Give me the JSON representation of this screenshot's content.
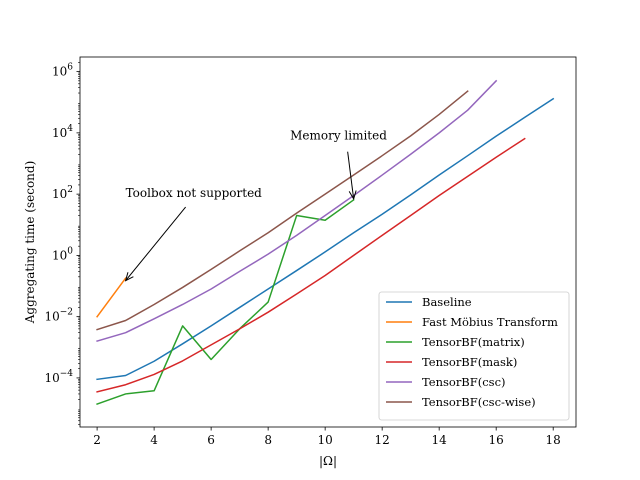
{
  "chart_data": {
    "type": "line",
    "xlabel": "|Ω|",
    "ylabel": "Aggregating time (second)",
    "xscale": "linear",
    "yscale": "log",
    "xlim": [
      1.4,
      18.8
    ],
    "ylim": [
      2.5e-06,
      3000000.0
    ],
    "xticks": [
      2,
      4,
      6,
      8,
      10,
      12,
      14,
      16,
      18
    ],
    "xtick_labels": [
      "2",
      "4",
      "6",
      "8",
      "10",
      "12",
      "14",
      "16",
      "18"
    ],
    "yticks": [
      0.0001,
      0.01,
      1,
      100,
      10000,
      1000000
    ],
    "ytick_labels": [
      {
        "base": "10",
        "exp": "−4"
      },
      {
        "base": "10",
        "exp": "−2"
      },
      {
        "base": "10",
        "exp": "0"
      },
      {
        "base": "10",
        "exp": "2"
      },
      {
        "base": "10",
        "exp": "4"
      },
      {
        "base": "10",
        "exp": "6"
      }
    ],
    "grid": false,
    "legend_position": "lower-right",
    "series": [
      {
        "name": "Baseline",
        "color": "#1f77b4",
        "x": [
          2,
          3,
          4,
          5,
          6,
          7,
          8,
          9,
          10,
          11,
          12,
          13,
          14,
          15,
          16,
          17,
          18
        ],
        "y": [
          9e-05,
          0.00012,
          0.00035,
          0.0013,
          0.005,
          0.02,
          0.08,
          0.32,
          1.3,
          5.5,
          22,
          95,
          420,
          1800,
          7800,
          32000,
          130000
        ]
      },
      {
        "name": "Fast Möbius Transform",
        "color": "#ff7f0e",
        "x": [
          2,
          3
        ],
        "y": [
          0.01,
          0.18
        ]
      },
      {
        "name": "TensorBF(matrix)",
        "color": "#2ca02c",
        "x": [
          2,
          3,
          4,
          5,
          6,
          7,
          8,
          9,
          10,
          11
        ],
        "y": [
          1.4e-05,
          3e-05,
          3.8e-05,
          0.005,
          0.0004,
          0.004,
          0.03,
          20,
          14,
          65
        ]
      },
      {
        "name": "TensorBF(mask)",
        "color": "#d62728",
        "x": [
          2,
          3,
          4,
          5,
          6,
          7,
          8,
          9,
          10,
          11,
          12,
          13,
          14,
          15,
          16,
          17
        ],
        "y": [
          3.5e-05,
          6e-05,
          0.00013,
          0.00036,
          0.0012,
          0.004,
          0.014,
          0.055,
          0.22,
          1,
          4.5,
          20,
          90,
          380,
          1600,
          6500
        ]
      },
      {
        "name": "TensorBF(csc)",
        "color": "#9467bd",
        "x": [
          2,
          3,
          4,
          5,
          6,
          7,
          8,
          9,
          10,
          11,
          12,
          13,
          14,
          15,
          16
        ],
        "y": [
          0.0016,
          0.003,
          0.0085,
          0.025,
          0.08,
          0.3,
          1.1,
          4.5,
          20,
          90,
          420,
          2000,
          10000,
          55000,
          500000
        ]
      },
      {
        "name": "TensorBF(csc-wise)",
        "color": "#8c564b",
        "x": [
          2,
          3,
          4,
          5,
          6,
          7,
          8,
          9,
          10,
          11,
          12,
          13,
          14,
          15
        ],
        "y": [
          0.0038,
          0.0075,
          0.025,
          0.09,
          0.35,
          1.4,
          5.5,
          24,
          100,
          420,
          1800,
          8000,
          40000,
          230000
        ]
      }
    ],
    "annotations": [
      {
        "text": "Toolbox not supported",
        "arrow_to": [
          3.0,
          0.15
        ],
        "text_at": [
          3.0,
          80
        ]
      },
      {
        "text": "Memory limited",
        "arrow_to": [
          11.0,
          70
        ],
        "text_at": [
          10.7,
          6000
        ]
      }
    ]
  }
}
